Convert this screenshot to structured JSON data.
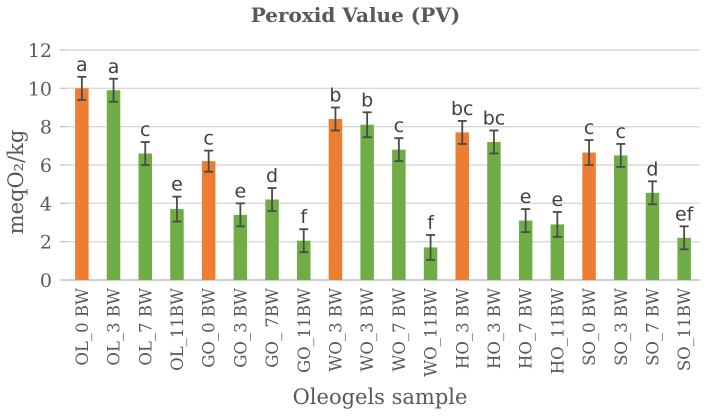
{
  "figure_title": "Peroxid Value (PV)",
  "chart_data": {
    "type": "bar",
    "title": "Peroxid Value (PV)",
    "xlabel": "Oleogels sample",
    "ylabel": "meqO₂/kg",
    "ylim": [
      0,
      12
    ],
    "yticks": [
      0,
      2,
      4,
      6,
      8,
      10,
      12
    ],
    "grid": true,
    "legend_position": "none",
    "categories": [
      "OL_0 BW",
      "OL_3 BW",
      "OL_7 BW",
      "OL_11BW",
      "GO_0 BW",
      "GO_3 BW",
      "GO_ 7BW",
      "GO_11BW",
      "WO_3 BW",
      "WO_3 BW",
      "WO_7 BW",
      "WO_11BW",
      "HO_3 BW",
      "HO_3 BW",
      "HO_7 BW",
      "HO_11BW",
      "SO_0 BW",
      "SO_3 BW",
      "SO_7 BW",
      "SO_11BW"
    ],
    "values": [
      10.0,
      9.9,
      6.6,
      3.7,
      6.2,
      3.4,
      4.2,
      2.05,
      8.4,
      8.1,
      6.8,
      1.7,
      7.7,
      7.2,
      3.1,
      2.9,
      6.65,
      6.5,
      4.55,
      2.2
    ],
    "errors": [
      0.6,
      0.6,
      0.6,
      0.65,
      0.55,
      0.6,
      0.6,
      0.6,
      0.6,
      0.65,
      0.6,
      0.65,
      0.6,
      0.6,
      0.6,
      0.65,
      0.65,
      0.6,
      0.6,
      0.6
    ],
    "sig_letters": [
      "a",
      "a",
      "c",
      "e",
      "c",
      "e",
      "d",
      "f",
      "b",
      "b",
      "c",
      "f",
      "bc",
      "bc",
      "e",
      "e",
      "c",
      "c",
      "d",
      "ef"
    ],
    "bar_colors": [
      "#ED7D31",
      "#70AD47",
      "#70AD47",
      "#70AD47",
      "#ED7D31",
      "#70AD47",
      "#70AD47",
      "#70AD47",
      "#ED7D31",
      "#70AD47",
      "#70AD47",
      "#70AD47",
      "#ED7D31",
      "#70AD47",
      "#70AD47",
      "#70AD47",
      "#ED7D31",
      "#70AD47",
      "#70AD47",
      "#70AD47"
    ],
    "palette": {
      "orange": "#ED7D31",
      "green": "#70AD47"
    }
  },
  "style": {
    "error_bar_color": "#4A4A4A",
    "letter_color": "#404040",
    "text_color": "#595959",
    "gridline_color": "#D9D9D9",
    "axis_line_color": "#BFBFBF",
    "background": "#FFFFFF"
  }
}
